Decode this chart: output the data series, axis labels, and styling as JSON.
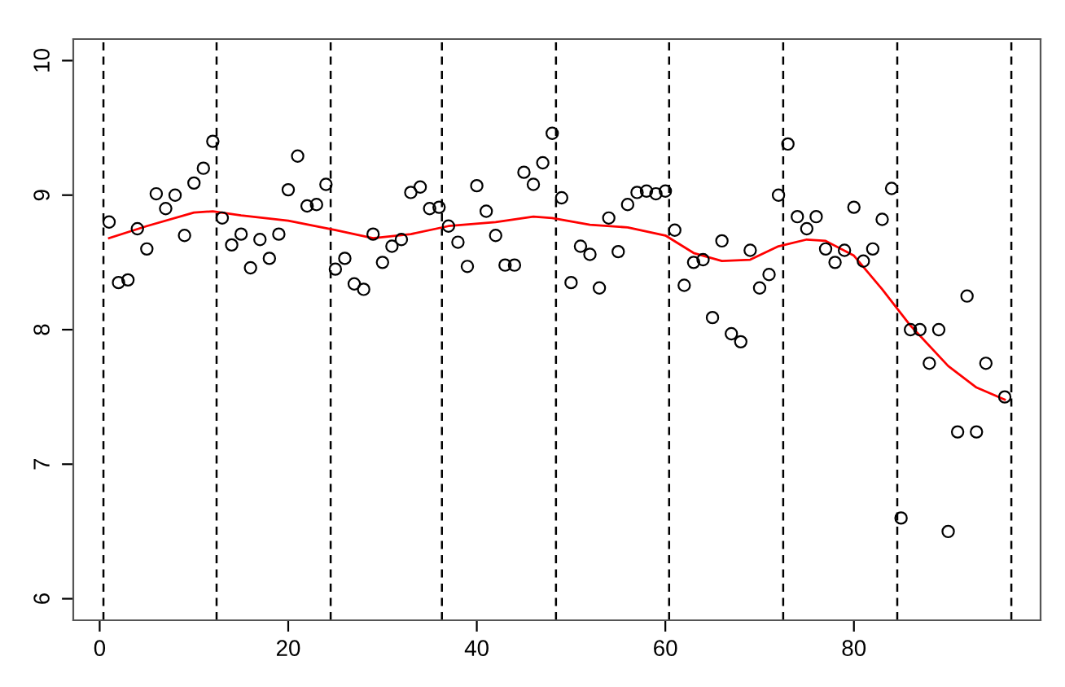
{
  "chart_data": {
    "type": "scatter",
    "xlim": [
      -2.8,
      99.8
    ],
    "ylim": [
      5.84,
      10.16
    ],
    "xticks": [
      0,
      20,
      40,
      60,
      80
    ],
    "yticks": [
      6,
      7,
      8,
      9,
      10
    ],
    "grid": false,
    "marker": "circle",
    "series": [
      {
        "color": "#000000",
        "x": [
          1,
          2,
          3,
          4,
          5,
          6,
          7,
          8,
          9,
          10,
          11,
          12,
          13,
          14,
          15,
          16,
          17,
          18,
          19,
          20,
          21,
          22,
          23,
          24,
          25,
          26,
          27,
          28,
          29,
          30,
          31,
          32,
          33,
          34,
          35,
          36,
          37,
          38,
          39,
          40,
          41,
          42,
          43,
          44,
          45,
          46,
          47,
          48,
          49,
          50,
          51,
          52,
          53,
          54,
          55,
          56,
          57,
          58,
          59,
          60,
          61,
          62,
          63,
          64,
          65,
          66,
          67,
          68,
          69,
          70,
          71,
          72,
          73,
          74,
          75,
          76,
          77,
          78,
          79,
          80,
          81,
          82,
          83,
          84,
          85,
          86,
          87,
          88,
          89,
          90,
          91,
          92,
          93,
          94,
          96
        ],
        "values": [
          8.8,
          8.35,
          8.37,
          8.75,
          8.6,
          9.01,
          8.9,
          9.0,
          8.7,
          9.09,
          9.2,
          9.4,
          8.83,
          8.63,
          8.71,
          8.46,
          8.67,
          8.53,
          8.71,
          9.04,
          9.29,
          8.92,
          8.93,
          9.08,
          8.45,
          8.53,
          8.34,
          8.3,
          8.71,
          8.5,
          8.62,
          8.67,
          9.02,
          9.06,
          8.9,
          8.91,
          8.77,
          8.65,
          8.47,
          9.07,
          8.88,
          8.7,
          8.48,
          8.48,
          9.17,
          9.08,
          9.24,
          9.46,
          8.98,
          8.35,
          8.62,
          8.56,
          8.31,
          8.83,
          8.58,
          8.93,
          9.02,
          9.03,
          9.01,
          9.03,
          8.74,
          8.33,
          8.5,
          8.52,
          8.09,
          8.66,
          7.97,
          7.91,
          8.59,
          8.31,
          8.41,
          9.0,
          9.38,
          8.84,
          8.75,
          8.84,
          8.6,
          8.5,
          8.59,
          8.91,
          8.51,
          8.6,
          8.82,
          9.05,
          6.6,
          8.0,
          8.0,
          7.75,
          8.0,
          6.5,
          7.24,
          8.25,
          7.24,
          7.75,
          7.5
        ]
      },
      {
        "type": "line",
        "color": "#ff0000",
        "marker": "none",
        "line_style": "solid",
        "x": [
          1,
          5,
          10,
          12,
          15,
          20,
          25,
          29,
          33,
          37,
          42,
          46,
          48,
          52,
          56,
          60,
          63,
          66,
          69,
          72,
          75,
          77,
          80,
          83,
          86,
          90,
          93,
          96
        ],
        "values": [
          8.68,
          8.77,
          8.87,
          8.88,
          8.85,
          8.81,
          8.74,
          8.68,
          8.71,
          8.77,
          8.8,
          8.84,
          8.83,
          8.78,
          8.76,
          8.7,
          8.57,
          8.51,
          8.52,
          8.62,
          8.67,
          8.66,
          8.55,
          8.3,
          8.03,
          7.73,
          7.57,
          7.48
        ]
      }
    ],
    "ref_lines": [
      {
        "axis": "x",
        "value": 0.4,
        "color": "#000000",
        "line_style": "dashed"
      },
      {
        "axis": "x",
        "value": 12.4,
        "color": "#000000",
        "line_style": "dashed"
      },
      {
        "axis": "x",
        "value": 24.5,
        "color": "#000000",
        "line_style": "dashed"
      },
      {
        "axis": "x",
        "value": 36.3,
        "color": "#000000",
        "line_style": "dashed"
      },
      {
        "axis": "x",
        "value": 48.4,
        "color": "#000000",
        "line_style": "dashed"
      },
      {
        "axis": "x",
        "value": 60.4,
        "color": "#000000",
        "line_style": "dashed"
      },
      {
        "axis": "x",
        "value": 72.5,
        "color": "#000000",
        "line_style": "dashed"
      },
      {
        "axis": "x",
        "value": 84.6,
        "color": "#000000",
        "line_style": "dashed"
      },
      {
        "axis": "x",
        "value": 96.7,
        "color": "#000000",
        "line_style": "dashed"
      }
    ]
  }
}
